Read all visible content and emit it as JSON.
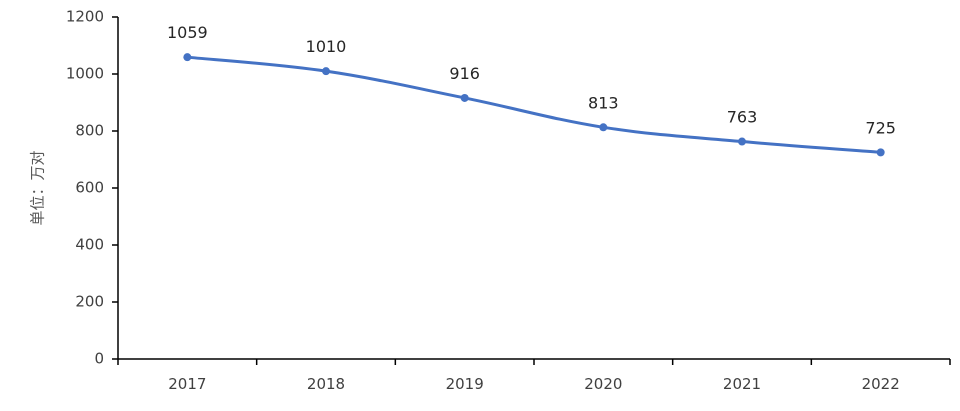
{
  "chart_data": {
    "type": "line",
    "title": "",
    "xlabel": "",
    "ylabel": "单位：万对",
    "categories": [
      "2017",
      "2018",
      "2019",
      "2020",
      "2021",
      "2022"
    ],
    "series": [
      {
        "values": [
          1059,
          1010,
          916,
          813,
          763,
          725
        ]
      }
    ],
    "data_labels": [
      "1059",
      "1010",
      "916",
      "813",
      "763",
      "725"
    ],
    "ylim": [
      0,
      1200
    ],
    "yticks": [
      0,
      200,
      400,
      600,
      800,
      1000,
      1200
    ],
    "ytick_labels": [
      "0",
      "200",
      "400",
      "600",
      "800",
      "1000",
      "1200"
    ],
    "grid": false,
    "legend": "none",
    "line_color": "#4472C4",
    "axis_color": "#000000"
  }
}
